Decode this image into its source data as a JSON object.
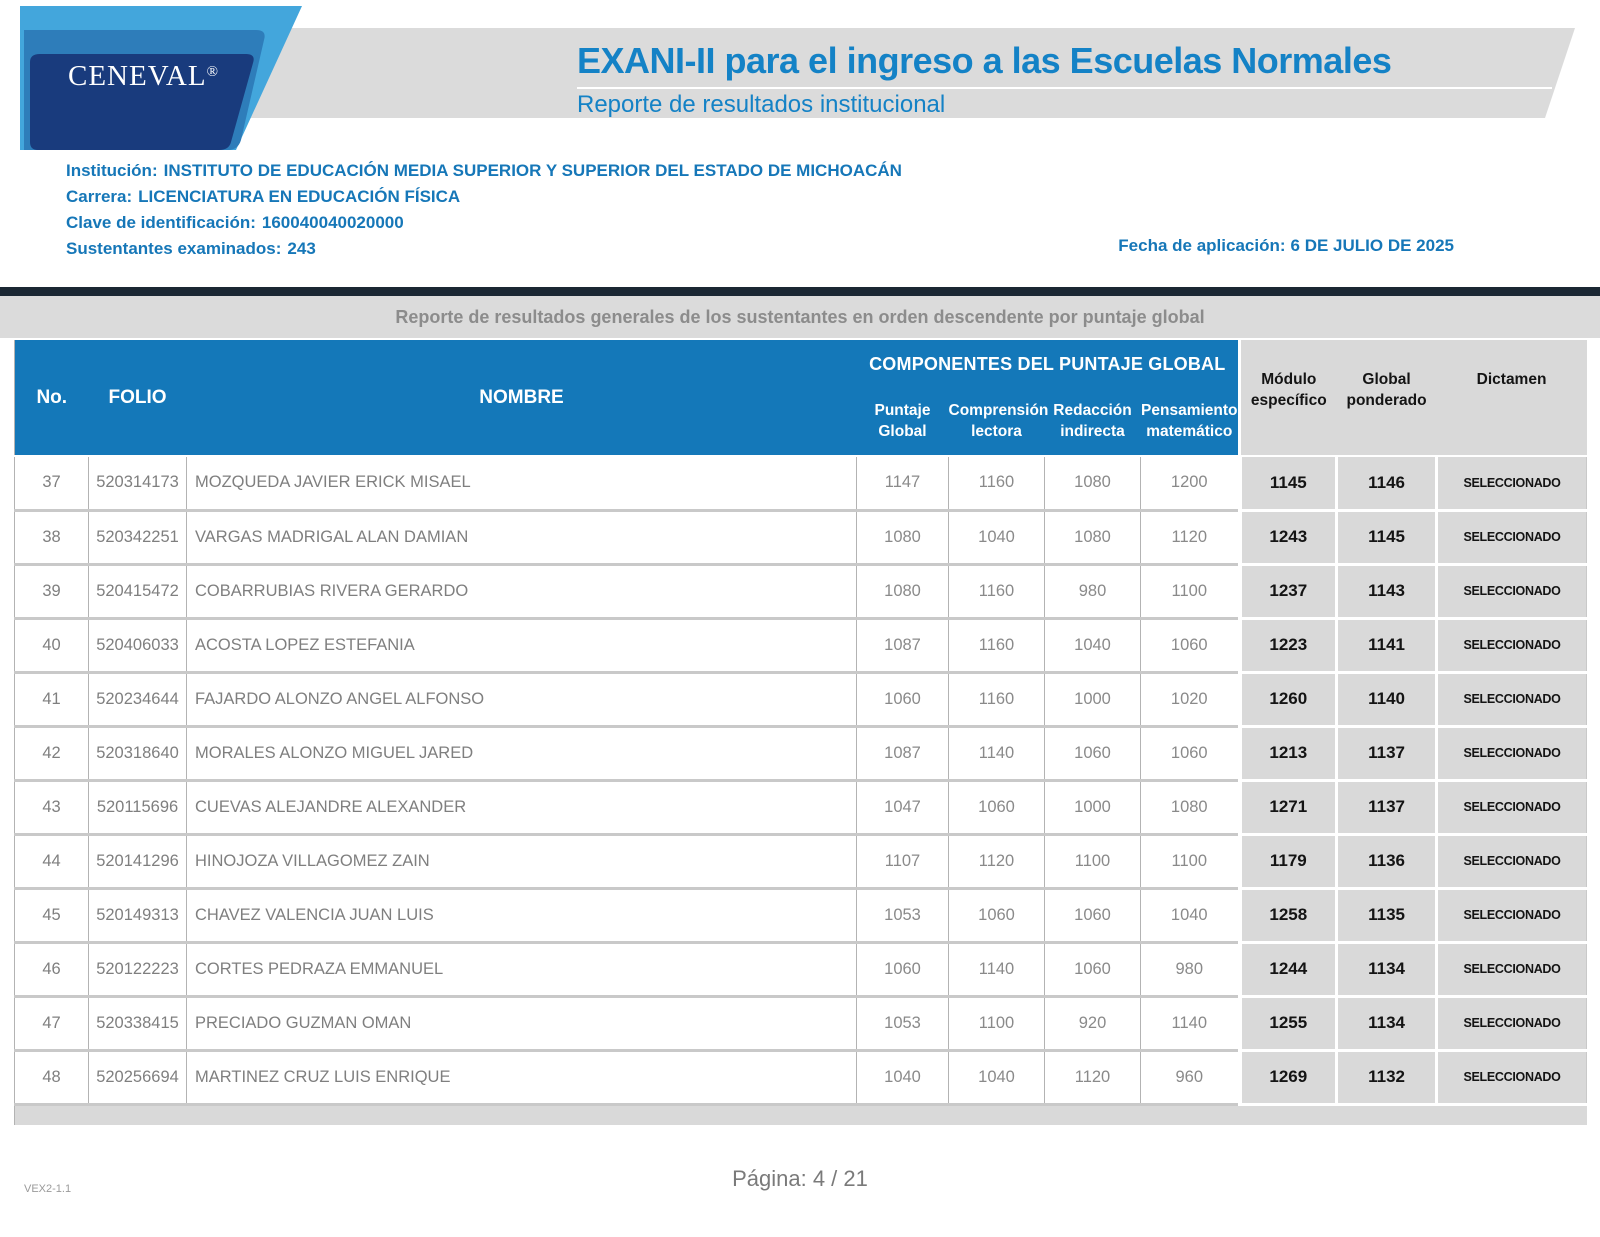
{
  "header": {
    "logo_text": "CENEVAL",
    "logo_reg": "®",
    "title": "EXANI-II para el ingreso a las Escuelas Normales",
    "subtitle": "Reporte de resultados institucional"
  },
  "info": {
    "lines": [
      {
        "label": "Institución:",
        "value": "INSTITUTO DE EDUCACIÓN MEDIA SUPERIOR Y SUPERIOR DEL ESTADO DE MICHOACÁN"
      },
      {
        "label": "Carrera:",
        "value": "LICENCIATURA EN EDUCACIÓN FÍSICA"
      },
      {
        "label": "Clave de identificación:",
        "value": "160040040020000"
      },
      {
        "label": "Sustentantes examinados:",
        "value": "243"
      }
    ],
    "fecha_label": "Fecha de aplicación:",
    "fecha_value": "6 DE JULIO DE 2025"
  },
  "section_title": "Reporte de resultados generales de los sustentantes en orden descendente por puntaje global",
  "table": {
    "section_header": "COMPONENTES DEL PUNTAJE GLOBAL",
    "columns": {
      "no": "No.",
      "folio": "FOLIO",
      "nombre": "NOMBRE",
      "puntaje_global": "Puntaje Global",
      "comprension_lectora": "Comprensión lectora",
      "redaccion_indirecta": "Redacción indirecta",
      "pensamiento_matematico": "Pensamiento matemático",
      "modulo_especifico": "Módulo específico",
      "global_ponderado": "Global ponderado",
      "dictamen": "Dictamen"
    },
    "rows": [
      {
        "no": "37",
        "folio": "520314173",
        "nombre": "MOZQUEDA JAVIER ERICK MISAEL",
        "puntaje_global": "1147",
        "comprension_lectora": "1160",
        "redaccion_indirecta": "1080",
        "pensamiento_matematico": "1200",
        "modulo_especifico": "1145",
        "global_ponderado": "1146",
        "dictamen": "SELECCIONADO"
      },
      {
        "no": "38",
        "folio": "520342251",
        "nombre": "VARGAS MADRIGAL ALAN DAMIAN",
        "puntaje_global": "1080",
        "comprension_lectora": "1040",
        "redaccion_indirecta": "1080",
        "pensamiento_matematico": "1120",
        "modulo_especifico": "1243",
        "global_ponderado": "1145",
        "dictamen": "SELECCIONADO"
      },
      {
        "no": "39",
        "folio": "520415472",
        "nombre": "COBARRUBIAS RIVERA GERARDO",
        "puntaje_global": "1080",
        "comprension_lectora": "1160",
        "redaccion_indirecta": "980",
        "pensamiento_matematico": "1100",
        "modulo_especifico": "1237",
        "global_ponderado": "1143",
        "dictamen": "SELECCIONADO"
      },
      {
        "no": "40",
        "folio": "520406033",
        "nombre": "ACOSTA LOPEZ ESTEFANIA",
        "puntaje_global": "1087",
        "comprension_lectora": "1160",
        "redaccion_indirecta": "1040",
        "pensamiento_matematico": "1060",
        "modulo_especifico": "1223",
        "global_ponderado": "1141",
        "dictamen": "SELECCIONADO"
      },
      {
        "no": "41",
        "folio": "520234644",
        "nombre": "FAJARDO ALONZO ANGEL ALFONSO",
        "puntaje_global": "1060",
        "comprension_lectora": "1160",
        "redaccion_indirecta": "1000",
        "pensamiento_matematico": "1020",
        "modulo_especifico": "1260",
        "global_ponderado": "1140",
        "dictamen": "SELECCIONADO"
      },
      {
        "no": "42",
        "folio": "520318640",
        "nombre": "MORALES ALONZO MIGUEL JARED",
        "puntaje_global": "1087",
        "comprension_lectora": "1140",
        "redaccion_indirecta": "1060",
        "pensamiento_matematico": "1060",
        "modulo_especifico": "1213",
        "global_ponderado": "1137",
        "dictamen": "SELECCIONADO"
      },
      {
        "no": "43",
        "folio": "520115696",
        "nombre": "CUEVAS ALEJANDRE ALEXANDER",
        "puntaje_global": "1047",
        "comprension_lectora": "1060",
        "redaccion_indirecta": "1000",
        "pensamiento_matematico": "1080",
        "modulo_especifico": "1271",
        "global_ponderado": "1137",
        "dictamen": "SELECCIONADO"
      },
      {
        "no": "44",
        "folio": "520141296",
        "nombre": "HINOJOZA VILLAGOMEZ ZAIN",
        "puntaje_global": "1107",
        "comprension_lectora": "1120",
        "redaccion_indirecta": "1100",
        "pensamiento_matematico": "1100",
        "modulo_especifico": "1179",
        "global_ponderado": "1136",
        "dictamen": "SELECCIONADO"
      },
      {
        "no": "45",
        "folio": "520149313",
        "nombre": "CHAVEZ VALENCIA JUAN LUIS",
        "puntaje_global": "1053",
        "comprension_lectora": "1060",
        "redaccion_indirecta": "1060",
        "pensamiento_matematico": "1040",
        "modulo_especifico": "1258",
        "global_ponderado": "1135",
        "dictamen": "SELECCIONADO"
      },
      {
        "no": "46",
        "folio": "520122223",
        "nombre": "CORTES PEDRAZA EMMANUEL",
        "puntaje_global": "1060",
        "comprension_lectora": "1140",
        "redaccion_indirecta": "1060",
        "pensamiento_matematico": "980",
        "modulo_especifico": "1244",
        "global_ponderado": "1134",
        "dictamen": "SELECCIONADO"
      },
      {
        "no": "47",
        "folio": "520338415",
        "nombre": "PRECIADO GUZMAN OMAN",
        "puntaje_global": "1053",
        "comprension_lectora": "1100",
        "redaccion_indirecta": "920",
        "pensamiento_matematico": "1140",
        "modulo_especifico": "1255",
        "global_ponderado": "1134",
        "dictamen": "SELECCIONADO"
      },
      {
        "no": "48",
        "folio": "520256694",
        "nombre": "MARTINEZ CRUZ LUIS ENRIQUE",
        "puntaje_global": "1040",
        "comprension_lectora": "1040",
        "redaccion_indirecta": "1120",
        "pensamiento_matematico": "960",
        "modulo_especifico": "1269",
        "global_ponderado": "1132",
        "dictamen": "SELECCIONADO"
      }
    ]
  },
  "footer": {
    "version": "VEX2-1.1",
    "page": "Página: 4 / 21"
  },
  "colors": {
    "accent_blue": "#1482C6",
    "table_header_blue": "#1478B9",
    "logo_light_blue": "#43A6DC",
    "logo_medium_blue": "#2E7DBA",
    "logo_navy": "#193B7D",
    "band_gray": "#DBDBDB",
    "cell_gray": "#D9D9D9",
    "dark_bar": "#1B2733",
    "text_gray": "#7F7F7F"
  }
}
